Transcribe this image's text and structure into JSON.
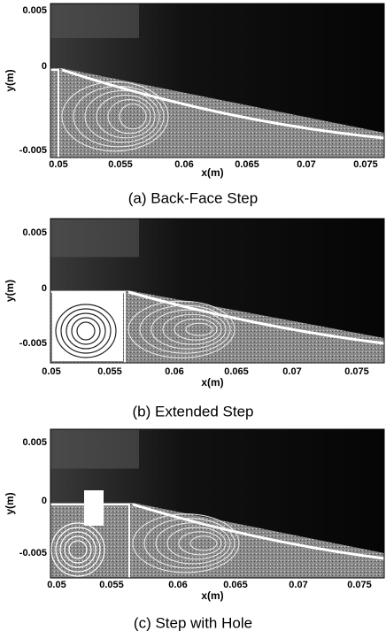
{
  "panels": [
    {
      "caption": "(a) Back-Face Step",
      "x_label": "x(m)",
      "y_label": "y(m)",
      "y_ticks": [
        "0.005",
        "0",
        "-0.005"
      ],
      "x_ticks": [
        "0.05",
        "0.055",
        "0.06",
        "0.065",
        "0.07",
        "0.075"
      ]
    },
    {
      "caption": "(b) Extended Step",
      "x_label": "x(m)",
      "y_label": "y(m)",
      "y_ticks": [
        "0.005",
        "0",
        "-0.005"
      ],
      "x_ticks": [
        "0.05",
        "0.055",
        "0.06",
        "0.065",
        "0.07",
        "0.075"
      ]
    },
    {
      "caption": "(c) Step with Hole",
      "x_label": "x(m)",
      "y_label": "y(m)",
      "y_ticks": [
        "0.005",
        "0",
        "-0.005"
      ],
      "x_ticks": [
        "0.05",
        "0.055",
        "0.06",
        "0.065",
        "0.07",
        "0.075"
      ]
    }
  ]
}
